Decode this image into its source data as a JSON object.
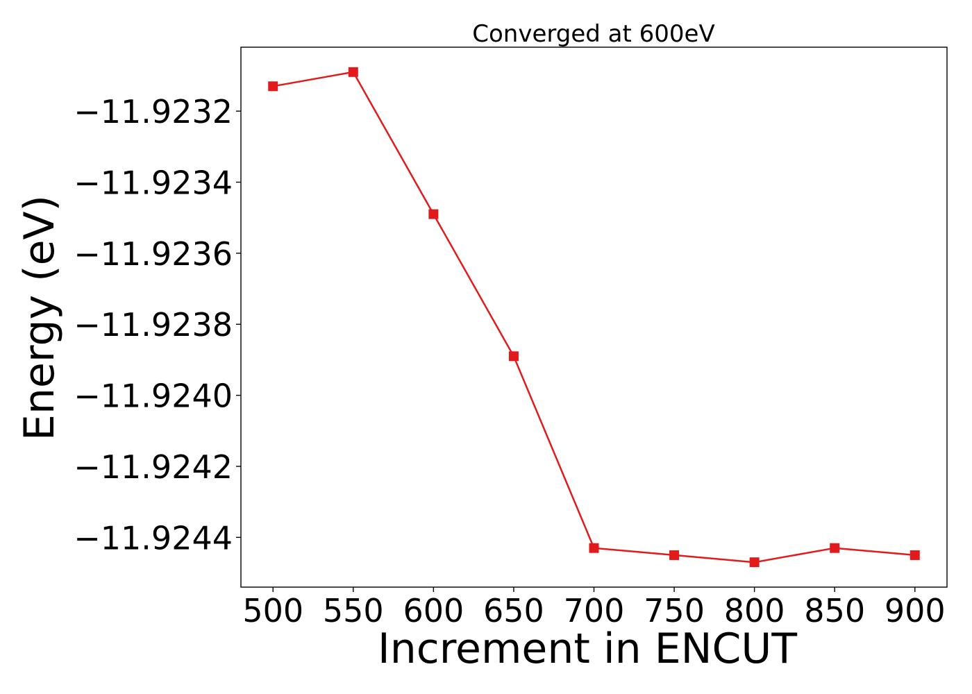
{
  "chart_data": {
    "type": "line",
    "title": "Converged at 600eV",
    "xlabel": "Increment in ENCUT",
    "ylabel": "Energy (eV)",
    "x": [
      500,
      550,
      600,
      650,
      700,
      750,
      800,
      850,
      900
    ],
    "series": [
      {
        "values": [
          -11.92313,
          -11.92309,
          -11.92349,
          -11.92389,
          -11.92443,
          -11.92445,
          -11.92447,
          -11.92443,
          -11.92445
        ],
        "color": "#e31a1c",
        "marker": "square"
      }
    ],
    "xlim": [
      480,
      920
    ],
    "ylim": [
      -11.92454,
      -11.92302
    ],
    "xticks": [
      500,
      550,
      600,
      650,
      700,
      750,
      800,
      850,
      900
    ],
    "xtick_labels": [
      "500",
      "550",
      "600",
      "650",
      "700",
      "750",
      "800",
      "850",
      "900"
    ],
    "yticks": [
      -11.9232,
      -11.9234,
      -11.9236,
      -11.9238,
      -11.924,
      -11.9242,
      -11.9244
    ],
    "ytick_labels": [
      "−11.9232",
      "−11.9234",
      "−11.9236",
      "−11.9238",
      "−11.9240",
      "−11.9242",
      "−11.9244"
    ],
    "grid": false,
    "legend": false
  }
}
